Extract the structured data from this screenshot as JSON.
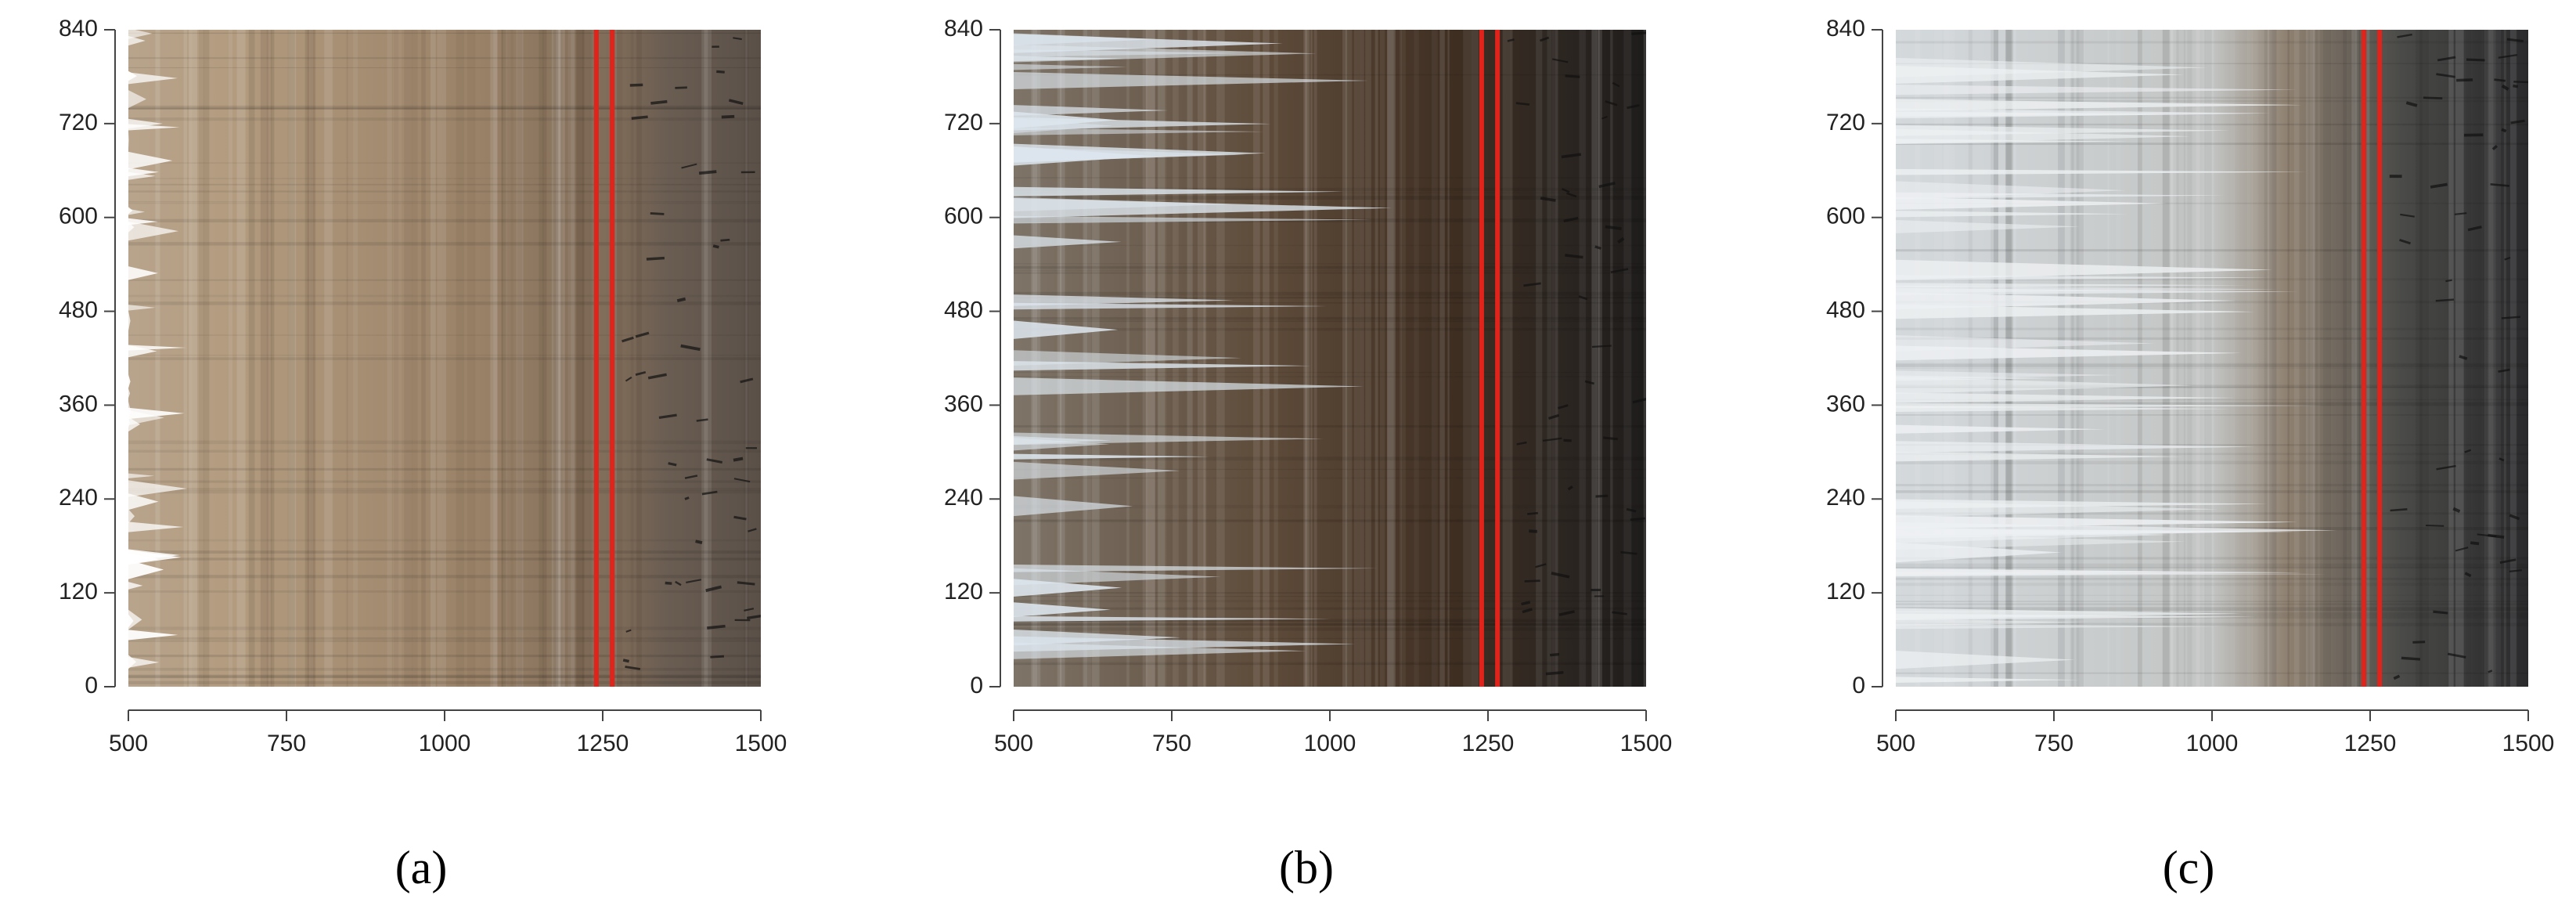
{
  "chart_data": [
    {
      "type": "image",
      "caption": "(a)",
      "xlim": [
        500,
        1500
      ],
      "ylim": [
        0,
        840
      ],
      "xticks": [
        500,
        750,
        1000,
        1250,
        1500
      ],
      "yticks": [
        0,
        120,
        240,
        360,
        480,
        600,
        720,
        840
      ],
      "vlines": [
        1240,
        1265
      ],
      "vline_color": "#e0231b"
    },
    {
      "type": "image",
      "caption": "(b)",
      "xlim": [
        500,
        1500
      ],
      "ylim": [
        0,
        840
      ],
      "xticks": [
        500,
        750,
        1000,
        1250,
        1500
      ],
      "yticks": [
        0,
        120,
        240,
        360,
        480,
        600,
        720,
        840
      ],
      "vlines": [
        1240,
        1265
      ],
      "vline_color": "#e0231b"
    },
    {
      "type": "image",
      "caption": "(c)",
      "xlim": [
        500,
        1500
      ],
      "ylim": [
        0,
        840
      ],
      "xticks": [
        500,
        750,
        1000,
        1250,
        1500
      ],
      "yticks": [
        0,
        120,
        240,
        360,
        480,
        600,
        720,
        840
      ],
      "vlines": [
        1240,
        1265
      ],
      "vline_color": "#e0231b"
    }
  ]
}
